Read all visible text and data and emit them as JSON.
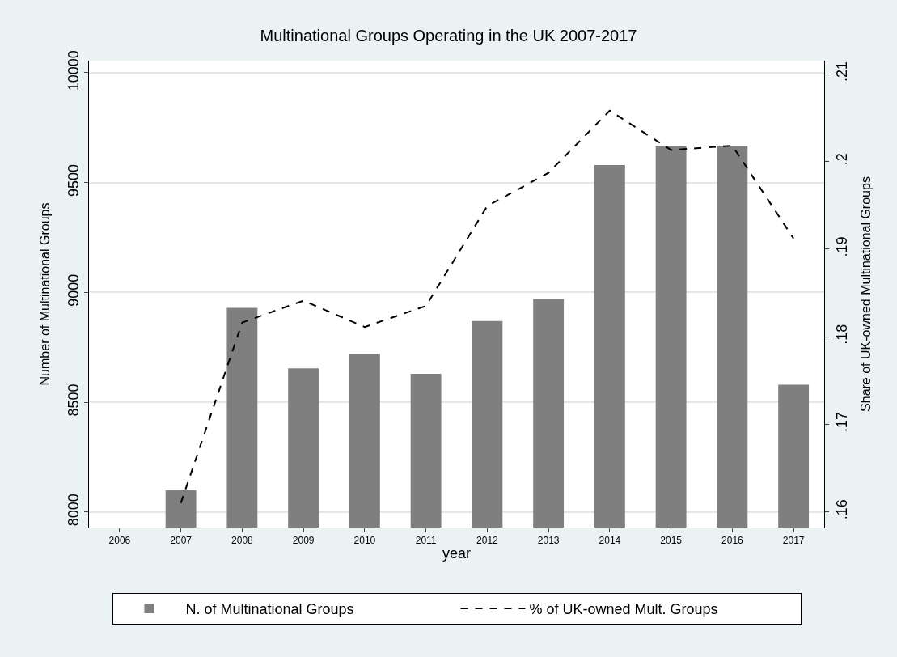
{
  "chart_data": {
    "type": "bar",
    "title": "Multinational Groups Operating in the UK 2007-2017",
    "xlabel": "year",
    "ylabel": "Number of Multinational Groups",
    "y2label": "Share of UK-owned Multinational Groups",
    "x": [
      2007,
      2008,
      2009,
      2010,
      2011,
      2012,
      2013,
      2014,
      2015,
      2016,
      2017
    ],
    "series": [
      {
        "name": "N. of Multinational Groups",
        "color": "#7f7f7f",
        "values": [
          8100,
          8930,
          8655,
          8720,
          8630,
          8870,
          8970,
          9580,
          9668,
          9668,
          8580
        ]
      },
      {
        "name": "% of UK-owned Mult. Groups",
        "type": "line",
        "axis": "y2",
        "color": "#000000",
        "line_style": "dashed",
        "values": [
          0.161,
          0.1816,
          0.1841,
          0.1811,
          0.1835,
          0.1949,
          0.1987,
          0.2058,
          0.2013,
          0.2018,
          0.1912
        ]
      }
    ],
    "xlim": [
      2005.5,
      2017.5
    ],
    "xticks": [
      2006,
      2007,
      2008,
      2009,
      2010,
      2011,
      2012,
      2013,
      2014,
      2015,
      2016,
      2017
    ],
    "ylim": [
      7930,
      10055
    ],
    "yticks": [
      8000,
      8500,
      9000,
      9500,
      10000
    ],
    "y2lim": [
      0.1582,
      0.2115
    ],
    "y2ticks": [
      {
        "value": 0.16,
        "label": ".16"
      },
      {
        "value": 0.17,
        "label": ".17"
      },
      {
        "value": 0.18,
        "label": ".18"
      },
      {
        "value": 0.19,
        "label": ".19"
      },
      {
        "value": 0.2,
        "label": ".2"
      },
      {
        "value": 0.21,
        "label": ".21"
      }
    ],
    "grid": "y",
    "legend": "bottom"
  }
}
